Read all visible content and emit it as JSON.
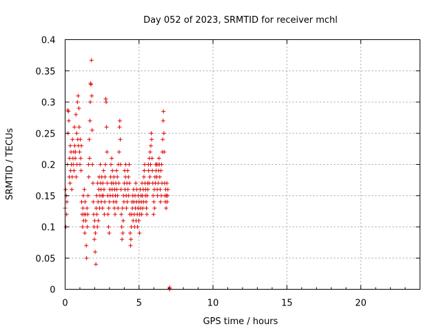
{
  "chart_data": {
    "type": "scatter",
    "title": "Day 052 of 2023, SRMTID for receiver mchl",
    "xlabel": "GPS time / hours",
    "ylabel": "SRMTID / TECUs",
    "xlim": [
      0,
      24
    ],
    "ylim": [
      0,
      0.4
    ],
    "x_ticks": [
      0,
      5,
      10,
      15,
      20
    ],
    "x_tick_labels": [
      "0",
      "5",
      "10",
      "15",
      "20"
    ],
    "y_ticks": [
      0,
      0.05,
      0.1,
      0.15,
      0.2,
      0.25,
      0.3,
      0.35,
      0.4
    ],
    "y_tick_labels": [
      "0",
      "0.05",
      "0.1",
      "0.15",
      "0.2",
      "0.25",
      "0.3",
      "0.35",
      "0.4"
    ],
    "grid": true,
    "marker": "+",
    "color": "#e00000",
    "series": [
      {
        "name": "SRMTID",
        "x": [
          0.0,
          0.03,
          0.05,
          0.08,
          0.1,
          0.12,
          0.15,
          0.18,
          0.2,
          0.22,
          0.25,
          0.28,
          0.3,
          0.33,
          0.35,
          0.38,
          0.4,
          0.42,
          0.45,
          0.48,
          0.5,
          0.53,
          0.55,
          0.58,
          0.6,
          0.63,
          0.65,
          0.68,
          0.7,
          0.73,
          0.75,
          0.78,
          0.8,
          0.83,
          0.85,
          0.88,
          0.9,
          0.93,
          0.95,
          0.98,
          1.0,
          1.03,
          1.05,
          1.08,
          1.1,
          1.12,
          1.15,
          1.18,
          1.2,
          1.23,
          1.25,
          1.28,
          1.3,
          1.33,
          1.35,
          1.38,
          1.4,
          1.43,
          1.45,
          1.48,
          1.5,
          1.53,
          1.55,
          1.58,
          1.6,
          1.63,
          1.65,
          1.68,
          1.7,
          1.72,
          1.75,
          1.78,
          1.8,
          1.83,
          1.85,
          1.88,
          1.9,
          1.93,
          1.95,
          1.98,
          2.0,
          2.03,
          2.05,
          2.08,
          2.1,
          2.13,
          2.15,
          2.18,
          2.2,
          2.23,
          2.25,
          2.28,
          2.3,
          2.33,
          2.35,
          2.38,
          2.4,
          2.43,
          2.45,
          2.48,
          2.5,
          2.53,
          2.55,
          2.58,
          2.6,
          2.63,
          2.65,
          2.68,
          2.7,
          2.73,
          2.75,
          2.78,
          2.8,
          2.83,
          2.85,
          2.88,
          2.9,
          2.93,
          2.95,
          2.98,
          3.0,
          3.03,
          3.05,
          3.08,
          3.1,
          3.13,
          3.15,
          3.18,
          3.2,
          3.23,
          3.25,
          3.28,
          3.3,
          3.33,
          3.35,
          3.38,
          3.4,
          3.43,
          3.45,
          3.48,
          3.5,
          3.53,
          3.55,
          3.58,
          3.6,
          3.63,
          3.65,
          3.68,
          3.7,
          3.73,
          3.75,
          3.78,
          3.8,
          3.83,
          3.85,
          3.88,
          3.9,
          3.93,
          3.95,
          3.98,
          4.0,
          4.03,
          4.05,
          4.08,
          4.1,
          4.13,
          4.15,
          4.18,
          4.2,
          4.23,
          4.25,
          4.28,
          4.3,
          4.33,
          4.35,
          4.38,
          4.4,
          4.43,
          4.45,
          4.48,
          4.5,
          4.53,
          4.55,
          4.58,
          4.6,
          4.63,
          4.65,
          4.68,
          4.7,
          4.73,
          4.75,
          4.78,
          4.8,
          4.83,
          4.85,
          4.88,
          4.9,
          4.93,
          4.95,
          4.98,
          5.0,
          5.03,
          5.05,
          5.08,
          5.1,
          5.13,
          5.15,
          5.18,
          5.2,
          5.23,
          5.25,
          5.28,
          5.3,
          5.33,
          5.35,
          5.38,
          5.4,
          5.43,
          5.45,
          5.48,
          5.5,
          5.53,
          5.55,
          5.58,
          5.6,
          5.63,
          5.65,
          5.68,
          5.7,
          5.73,
          5.75,
          5.78,
          5.8,
          5.83,
          5.85,
          5.88,
          5.9,
          5.93,
          5.95,
          5.98,
          6.0,
          6.03,
          6.05,
          6.08,
          6.1,
          6.13,
          6.15,
          6.18,
          6.2,
          6.23,
          6.25,
          6.28,
          6.3,
          6.33,
          6.35,
          6.38,
          6.4,
          6.43,
          6.45,
          6.48,
          6.5,
          6.53,
          6.55,
          6.58,
          6.6,
          6.63,
          6.65,
          6.68,
          6.7,
          6.73,
          6.75,
          6.78,
          6.8,
          6.83,
          6.85,
          6.88,
          6.9,
          6.93,
          6.95,
          7.07,
          7.07,
          7.07
        ],
        "y": [
          0.13,
          0.16,
          0.1,
          0.15,
          0.12,
          0.14,
          0.2,
          0.287,
          0.25,
          0.285,
          0.27,
          0.18,
          0.21,
          0.17,
          0.23,
          0.19,
          0.22,
          0.2,
          0.16,
          0.18,
          0.24,
          0.21,
          0.2,
          0.22,
          0.19,
          0.26,
          0.23,
          0.21,
          0.22,
          0.28,
          0.18,
          0.25,
          0.2,
          0.3,
          0.24,
          0.31,
          0.23,
          0.29,
          0.26,
          0.22,
          0.2,
          0.24,
          0.21,
          0.19,
          0.23,
          0.14,
          0.12,
          0.1,
          0.13,
          0.15,
          0.11,
          0.12,
          0.16,
          0.09,
          0.14,
          0.12,
          0.11,
          0.07,
          0.05,
          0.13,
          0.1,
          0.12,
          0.15,
          0.2,
          0.18,
          0.24,
          0.21,
          0.27,
          0.3,
          0.33,
          0.328,
          0.367,
          0.31,
          0.255,
          0.2,
          0.17,
          0.14,
          0.12,
          0.1,
          0.08,
          0.11,
          0.06,
          0.09,
          0.04,
          0.13,
          0.15,
          0.12,
          0.1,
          0.17,
          0.14,
          0.11,
          0.16,
          0.18,
          0.13,
          0.15,
          0.2,
          0.17,
          0.16,
          0.14,
          0.18,
          0.15,
          0.13,
          0.17,
          0.15,
          0.19,
          0.16,
          0.12,
          0.14,
          0.18,
          0.2,
          0.305,
          0.3,
          0.26,
          0.22,
          0.17,
          0.15,
          0.12,
          0.1,
          0.13,
          0.09,
          0.14,
          0.16,
          0.15,
          0.18,
          0.2,
          0.17,
          0.21,
          0.16,
          0.19,
          0.15,
          0.17,
          0.14,
          0.18,
          0.13,
          0.16,
          0.12,
          0.15,
          0.17,
          0.14,
          0.19,
          0.16,
          0.18,
          0.15,
          0.13,
          0.2,
          0.17,
          0.22,
          0.26,
          0.27,
          0.24,
          0.2,
          0.16,
          0.12,
          0.1,
          0.08,
          0.13,
          0.09,
          0.11,
          0.15,
          0.14,
          0.17,
          0.19,
          0.16,
          0.18,
          0.2,
          0.15,
          0.13,
          0.17,
          0.14,
          0.19,
          0.16,
          0.18,
          0.15,
          0.2,
          0.17,
          0.12,
          0.09,
          0.07,
          0.08,
          0.1,
          0.12,
          0.14,
          0.13,
          0.15,
          0.11,
          0.16,
          0.14,
          0.12,
          0.1,
          0.15,
          0.13,
          0.17,
          0.11,
          0.14,
          0.16,
          0.12,
          0.1,
          0.13,
          0.15,
          0.11,
          0.14,
          0.09,
          0.12,
          0.16,
          0.13,
          0.15,
          0.14,
          0.12,
          0.17,
          0.15,
          0.13,
          0.16,
          0.14,
          0.18,
          0.19,
          0.2,
          0.17,
          0.15,
          0.16,
          0.14,
          0.13,
          0.12,
          0.15,
          0.17,
          0.16,
          0.2,
          0.19,
          0.17,
          0.21,
          0.18,
          0.22,
          0.2,
          0.23,
          0.25,
          0.24,
          0.21,
          0.19,
          0.17,
          0.15,
          0.12,
          0.14,
          0.16,
          0.13,
          0.18,
          0.17,
          0.2,
          0.19,
          0.2,
          0.18,
          0.16,
          0.15,
          0.2,
          0.17,
          0.19,
          0.21,
          0.2,
          0.18,
          0.16,
          0.14,
          0.19,
          0.15,
          0.2,
          0.17,
          0.22,
          0.24,
          0.27,
          0.285,
          0.25,
          0.22,
          0.17,
          0.15,
          0.14,
          0.16,
          0.13,
          0.15,
          0.17,
          0.14,
          0.15,
          0.16,
          0.0,
          0.003,
          0.001
        ]
      }
    ]
  }
}
